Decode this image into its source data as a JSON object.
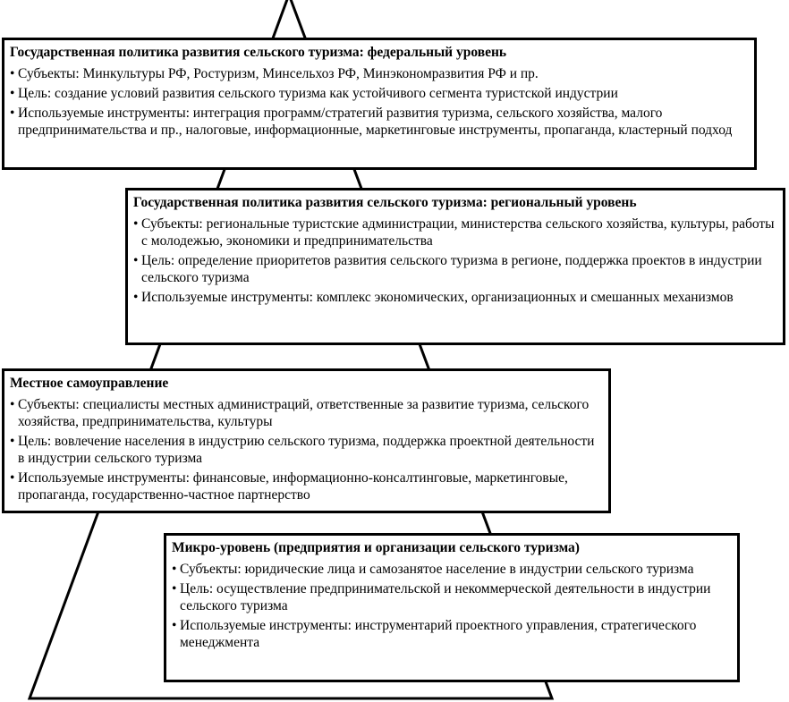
{
  "colors": {
    "line": "#000000",
    "background": "#ffffff"
  },
  "levels": [
    {
      "title": "Государственная политика развития сельского туризма: федеральный уровень",
      "items": [
        "Субъекты: Минкультуры РФ, Ростуризм, Минсельхоз РФ, Минэкономразвития РФ и пр.",
        "Цель: создание условий развития сельского туризма как устойчивого сегмента туристской индустрии",
        "Используемые инструменты: интеграция программ/стратегий развития туризма, сельского хозяйства, малого предпринимательства и пр., налоговые, информационные, маркетинговые инструменты, пропаганда, кластерный подход"
      ]
    },
    {
      "title": "Государственная политика развития сельского туризма: региональный уровень",
      "items": [
        "Субъекты: региональные туристские администрации, министерства сельского хозяйства, культуры, работы с молодежью, экономики и предпринимательства",
        "Цель: определение приоритетов развития сельского туризма в регионе, поддержка проектов в индустрии сельского туризма",
        "Используемые инструменты: комплекс экономических, организационных и смешанных механизмов"
      ]
    },
    {
      "title": "Местное самоуправление",
      "items": [
        "Субъекты: специалисты местных администраций, ответственные за развитие туризма, сельского хозяйства, предпринимательства, культуры",
        "Цель: вовлечение населения в индустрию сельского туризма, поддержка проектной деятельности в индустрии сельского туризма",
        "Используемые инструменты: финансовые, информационно-консалтинговые, маркетинговые, пропаганда, государственно-частное партнерство"
      ]
    },
    {
      "title": "Микро-уровень (предприятия и организации сельского туризма)",
      "items": [
        "Субъекты: юридические лица и самозанятое население в индустрии сельского туризма",
        "Цель: осуществление предпринимательской и некоммерческой деятельности в индустрии сельского туризма",
        "Используемые инструменты: инструментарий проектного управления, стратегического менеджмента"
      ]
    }
  ]
}
